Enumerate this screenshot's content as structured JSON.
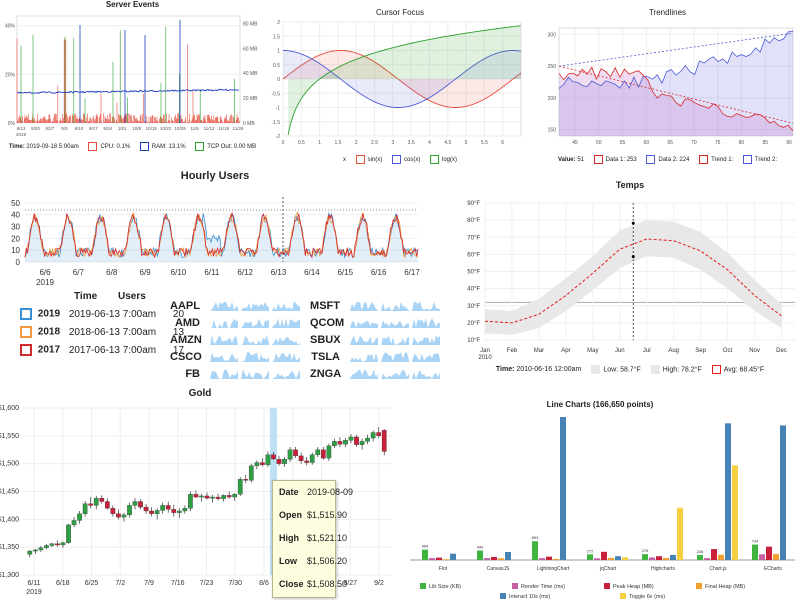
{
  "server_events": {
    "title": "Server Events",
    "legend": {
      "time": "Time:",
      "time_val": "2019-09-18 5:00am",
      "cpu": "CPU:",
      "cpu_val": "0.1%",
      "ram": "RAM:",
      "ram_val": "13.1%",
      "tcp": "TCP Out:",
      "tcp_val": "0.00 MB"
    }
  },
  "cursor_focus": {
    "title": "Cursor Focus",
    "legend": {
      "x": "x",
      "sin": "sin(x)",
      "cos": "cos(x)",
      "log": "log(x)"
    }
  },
  "trendlines": {
    "title": "Trendlines",
    "legend": {
      "value": "Value:",
      "value_val": "51",
      "d1": "Data 1:",
      "d1_val": "253",
      "d2": "Data 2:",
      "d2_val": "224",
      "t1": "Trend 1:",
      "t2": "Trend 2:"
    }
  },
  "hourly_users": {
    "title": "Hourly Users",
    "table": {
      "headers": [
        "Time",
        "Users"
      ],
      "rows": [
        {
          "year": "2019",
          "time": "2019-06-13 7:00am",
          "users": "20",
          "color": "#3b8fd0"
        },
        {
          "year": "2018",
          "time": "2018-06-13 7:00am",
          "users": "13",
          "color": "#f39a3e"
        },
        {
          "year": "2017",
          "time": "2017-06-13 7:00am",
          "users": "17",
          "color": "#d62728"
        }
      ]
    }
  },
  "sparks": {
    "left": [
      "AAPL",
      "AMD",
      "AMZN",
      "CSCO",
      "FB"
    ],
    "right": [
      "MSFT",
      "QCOM",
      "SBUX",
      "TSLA",
      "ZNGA"
    ]
  },
  "temps": {
    "title": "Temps",
    "legend": {
      "time": "Time:",
      "time_val": "2010-06-16 12:00am",
      "low": "Low:",
      "low_val": "58.7°F",
      "high": "High:",
      "high_val": "78.2°F",
      "avg": "Avg:",
      "avg_val": "68.45°F"
    }
  },
  "gold": {
    "title": "Gold",
    "tooltip": {
      "date_label": "Date",
      "date": "2019-08-09",
      "open_label": "Open",
      "open": "$1,515.90",
      "high_label": "High",
      "high": "$1,521.10",
      "low_label": "Low",
      "low": "$1,506.20",
      "close_label": "Close",
      "close": "$1,508.50"
    }
  },
  "chart_data": [
    {
      "type": "line",
      "title": "Server Events",
      "x": [
        "8/13",
        "8/20",
        "8/27",
        "9/3",
        "9/10",
        "9/17",
        "9/24",
        "10/1",
        "10/8",
        "10/15",
        "10/22",
        "10/29",
        "11/5",
        "11/12",
        "11/19",
        "11/26"
      ],
      "x_first_sub": "2019",
      "y_left_ticks": [
        "0%",
        "20%",
        "40%"
      ],
      "y_right_ticks": [
        "0 MB",
        "20 MB",
        "40 MB",
        "60 MB",
        "80 MB"
      ],
      "series": [
        {
          "name": "CPU",
          "color": "#e74c3c"
        },
        {
          "name": "RAM",
          "color": "#1f3fbf"
        },
        {
          "name": "TCP Out",
          "color": "#2ca02c"
        }
      ]
    },
    {
      "type": "area",
      "title": "Cursor Focus",
      "xlim": [
        0,
        6.5
      ],
      "ylim": [
        -2,
        2
      ],
      "x_ticks": [
        "0",
        "0.5",
        "1",
        "1.5",
        "2",
        "2.5",
        "3",
        "3.5",
        "4",
        "4.5",
        "5",
        "5.5",
        "6"
      ],
      "y_ticks": [
        "-2",
        "-1.5",
        "-1",
        "-0.5",
        "0",
        "0.5",
        "1",
        "1.5",
        "2"
      ],
      "series": [
        {
          "name": "sin(x)",
          "color": "#e74c3c",
          "fill": "rgba(231,76,60,0.12)"
        },
        {
          "name": "cos(x)",
          "color": "#4b5bd6",
          "fill": "rgba(75,91,214,0.12)"
        },
        {
          "name": "log(x)",
          "color": "#2ca02c",
          "fill": "rgba(44,160,44,0.15)"
        }
      ]
    },
    {
      "type": "line",
      "title": "Trendlines",
      "x_ticks": [
        "45",
        "50",
        "55",
        "60",
        "65",
        "70",
        "75",
        "80",
        "85",
        "90"
      ],
      "y_ticks": [
        "150",
        "200",
        "250",
        "300"
      ],
      "ylim": [
        140,
        310
      ],
      "series": [
        {
          "name": "Data 1",
          "color": "#d62728"
        },
        {
          "name": "Data 2",
          "color": "#4b5bd6"
        },
        {
          "name": "Trend 1",
          "color": "#d62728"
        },
        {
          "name": "Trend 2",
          "color": "#4b5bd6"
        }
      ]
    },
    {
      "type": "line",
      "title": "Hourly Users",
      "x_ticks": [
        "6/6",
        "6/7",
        "6/8",
        "6/9",
        "6/10",
        "6/11",
        "6/12",
        "6/13",
        "6/14",
        "6/15",
        "6/16",
        "6/17"
      ],
      "x_first_sub": "2019",
      "y_ticks": [
        "0",
        "10",
        "20",
        "30",
        "40",
        "50"
      ],
      "ylim": [
        0,
        55
      ],
      "series": [
        {
          "name": "2019",
          "color": "#3b8fd0"
        },
        {
          "name": "2018",
          "color": "#f39a3e"
        },
        {
          "name": "2017",
          "color": "#d62728"
        }
      ]
    },
    {
      "type": "area",
      "title": "Temps",
      "x_ticks": [
        "Jan",
        "Feb",
        "Mar",
        "Apr",
        "May",
        "Jun",
        "Jul",
        "Aug",
        "Sep",
        "Oct",
        "Nov",
        "Dec"
      ],
      "x_first_sub": "2010",
      "y_ticks": [
        "10°F",
        "20°F",
        "30°F",
        "40°F",
        "50°F",
        "60°F",
        "70°F",
        "80°F",
        "90°F"
      ],
      "ylim": [
        10,
        90
      ],
      "months": [
        1,
        2,
        3,
        4,
        5,
        6,
        7,
        8,
        9,
        10,
        11,
        12
      ],
      "low": [
        14,
        13,
        17,
        27,
        39,
        52,
        59,
        58,
        51,
        40,
        27,
        17
      ],
      "high": [
        28,
        27,
        34,
        46,
        59,
        74,
        80,
        79,
        73,
        61,
        45,
        31
      ],
      "avg": [
        21,
        20,
        25,
        36,
        49,
        63,
        69,
        68,
        62,
        51,
        36,
        24
      ],
      "series": [
        {
          "name": "Avg",
          "color": "#e31a1c"
        }
      ]
    },
    {
      "type": "candlestick",
      "title": "Gold",
      "x_ticks": [
        "6/11",
        "6/18",
        "6/25",
        "7/2",
        "7/9",
        "7/16",
        "7/23",
        "7/30",
        "8/6",
        "8/13",
        "8/20",
        "8/27",
        "9/2"
      ],
      "x_first_sub": "2019",
      "y_ticks": [
        "$1,300",
        "$1,350",
        "$1,400",
        "$1,450",
        "$1,500",
        "$1,550",
        "$1,600"
      ],
      "ylim": [
        1300,
        1600
      ],
      "candles": [
        [
          1337,
          1345,
          1332,
          1343
        ],
        [
          1343,
          1347,
          1338,
          1345
        ],
        [
          1345,
          1352,
          1341,
          1349
        ],
        [
          1349,
          1356,
          1346,
          1353
        ],
        [
          1353,
          1358,
          1350,
          1356
        ],
        [
          1356,
          1362,
          1351,
          1354
        ],
        [
          1354,
          1360,
          1349,
          1358
        ],
        [
          1358,
          1392,
          1356,
          1390
        ],
        [
          1390,
          1404,
          1386,
          1398
        ],
        [
          1398,
          1415,
          1392,
          1410
        ],
        [
          1410,
          1433,
          1405,
          1428
        ],
        [
          1428,
          1440,
          1420,
          1425
        ],
        [
          1425,
          1442,
          1418,
          1438
        ],
        [
          1438,
          1443,
          1428,
          1432
        ],
        [
          1432,
          1438,
          1418,
          1420
        ],
        [
          1420,
          1425,
          1405,
          1410
        ],
        [
          1410,
          1418,
          1400,
          1404
        ],
        [
          1404,
          1412,
          1396,
          1408
        ],
        [
          1408,
          1430,
          1403,
          1425
        ],
        [
          1425,
          1438,
          1418,
          1432
        ],
        [
          1432,
          1436,
          1418,
          1422
        ],
        [
          1422,
          1428,
          1410,
          1415
        ],
        [
          1415,
          1422,
          1405,
          1410
        ],
        [
          1410,
          1420,
          1400,
          1416
        ],
        [
          1416,
          1430,
          1410,
          1425
        ],
        [
          1425,
          1432,
          1412,
          1418
        ],
        [
          1418,
          1426,
          1405,
          1412
        ],
        [
          1412,
          1420,
          1402,
          1415
        ],
        [
          1415,
          1425,
          1410,
          1420
        ],
        [
          1420,
          1450,
          1415,
          1445
        ],
        [
          1445,
          1452,
          1438,
          1440
        ],
        [
          1440,
          1446,
          1432,
          1442
        ],
        [
          1442,
          1448,
          1436,
          1438
        ],
        [
          1438,
          1444,
          1430,
          1440
        ],
        [
          1440,
          1446,
          1434,
          1437
        ],
        [
          1437,
          1445,
          1432,
          1443
        ],
        [
          1443,
          1450,
          1437,
          1440
        ],
        [
          1440,
          1447,
          1433,
          1445
        ],
        [
          1445,
          1476,
          1442,
          1472
        ],
        [
          1472,
          1480,
          1465,
          1470
        ],
        [
          1470,
          1500,
          1466,
          1496
        ],
        [
          1496,
          1506,
          1490,
          1502
        ],
        [
          1502,
          1510,
          1495,
          1498
        ],
        [
          1498,
          1522,
          1494,
          1516
        ],
        [
          1515.9,
          1521.1,
          1506.2,
          1508.5
        ],
        [
          1508,
          1514,
          1496,
          1500
        ],
        [
          1500,
          1512,
          1494,
          1508
        ],
        [
          1508,
          1530,
          1503,
          1525
        ],
        [
          1525,
          1530,
          1510,
          1514
        ],
        [
          1514,
          1520,
          1500,
          1505
        ],
        [
          1505,
          1512,
          1497,
          1502
        ],
        [
          1502,
          1520,
          1498,
          1516
        ],
        [
          1516,
          1530,
          1512,
          1525
        ],
        [
          1525,
          1530,
          1507,
          1510
        ],
        [
          1510,
          1536,
          1505,
          1532
        ],
        [
          1532,
          1545,
          1528,
          1540
        ],
        [
          1540,
          1548,
          1530,
          1535
        ],
        [
          1535,
          1546,
          1530,
          1542
        ],
        [
          1542,
          1553,
          1537,
          1548
        ],
        [
          1548,
          1552,
          1530,
          1534
        ],
        [
          1534,
          1545,
          1525,
          1540
        ],
        [
          1540,
          1552,
          1535,
          1546
        ],
        [
          1546,
          1560,
          1540,
          1556
        ],
        [
          1556,
          1566,
          1546,
          1550
        ],
        [
          1560,
          1562,
          1515,
          1522
        ]
      ],
      "up_color": "#2e9e44",
      "down_color": "#c8203a"
    },
    {
      "type": "bar",
      "title": "Line Charts (166,650 points)",
      "categories": [
        "Flot",
        "CanvasJS",
        "LightningChart",
        "jqChart",
        "Highcharts",
        "Chart.js",
        "ECharts"
      ],
      "ylim": [
        0,
        6800
      ],
      "series": [
        {
          "name": "Lib Size (KB)",
          "color": "#3fb43f",
          "values": [
            494,
            449,
            893,
            272,
            278,
            238,
            734
          ],
          "labels": [
            "494",
            "449",
            "893",
            "272",
            "278",
            "238",
            "734"
          ]
        },
        {
          "name": "Render Time (ms)",
          "color": "#c461a3",
          "values": [
            90,
            90,
            90,
            80,
            120,
            90,
            270
          ],
          "labels": [
            "",
            "",
            "",
            "",
            "",
            "",
            ""
          ]
        },
        {
          "name": "Peak Heap (MB)",
          "color": "#c8203a",
          "values": [
            113,
            143,
            160,
            389,
            180,
            520,
            635
          ],
          "labels": [
            "",
            "",
            "",
            "",
            "",
            "",
            ""
          ]
        },
        {
          "name": "Final Heap (MB)",
          "color": "#f0a030",
          "values": [
            35,
            85,
            50,
            100,
            100,
            250,
            280
          ],
          "labels": [
            "",
            "",
            "",
            "",
            "",
            "",
            ""
          ]
        },
        {
          "name": "Interact 10s (ms)",
          "color": "#4682b4",
          "values": [
            300,
            380,
            6800,
            180,
            240,
            6500,
            6400
          ],
          "labels": [
            "",
            "",
            "",
            "",
            "",
            "",
            ""
          ]
        },
        {
          "name": "Toggle 6x (ms)",
          "color": "#f4cf3f",
          "values": [
            0,
            0,
            0,
            130,
            2483,
            4500,
            0
          ],
          "labels": [
            "",
            "",
            "",
            "",
            "",
            "",
            ""
          ]
        }
      ]
    }
  ]
}
